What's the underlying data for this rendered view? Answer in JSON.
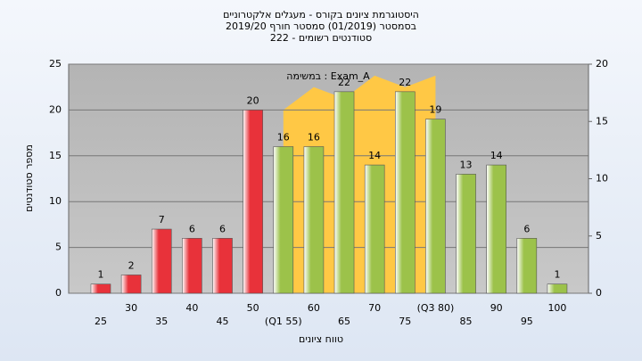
{
  "chart_data": {
    "type": "bar",
    "title": [
      "היסטוגרמת ציונים בקורס - מעגלים אלקטרוניים",
      "בסמסטר  (01/2019)  סמסטר חורף 2019/20",
      "סטודנטים רשומים - 222"
    ],
    "annotation": "במשימה : Exam_A",
    "x_label": "טווח ציונים",
    "y_label": "מספר סטודנטים",
    "categories": [
      "25",
      "30",
      "35",
      "40",
      "45",
      "50",
      "(Q1 55)",
      "60",
      "65",
      "70",
      "75",
      "(Q3 80)",
      "85",
      "90",
      "95",
      "100"
    ],
    "series": [
      {
        "type": "bar",
        "values": [
          1,
          2,
          7,
          6,
          6,
          20,
          16,
          16,
          22,
          14,
          22,
          19,
          13,
          14,
          6,
          1
        ],
        "colors": [
          "#e8323a",
          "#e8323a",
          "#e8323a",
          "#e8323a",
          "#e8323a",
          "#e8323a",
          "#9cc24a",
          "#9cc24a",
          "#9cc24a",
          "#9cc24a",
          "#9cc24a",
          "#9cc24a",
          "#9cc24a",
          "#9cc24a",
          "#9cc24a",
          "#9cc24a"
        ]
      },
      {
        "type": "area",
        "axis": "y2",
        "color": "#ffc845",
        "values": [
          null,
          null,
          null,
          null,
          null,
          null,
          16,
          18,
          17,
          19,
          18,
          19,
          null,
          null,
          null,
          null
        ]
      }
    ],
    "ylim": [
      0,
      25
    ],
    "yticks": [
      0,
      5,
      10,
      15,
      20,
      25
    ],
    "y2lim": [
      0,
      20
    ],
    "y2ticks": [
      0,
      5,
      10,
      15,
      20
    ],
    "grid": true
  }
}
